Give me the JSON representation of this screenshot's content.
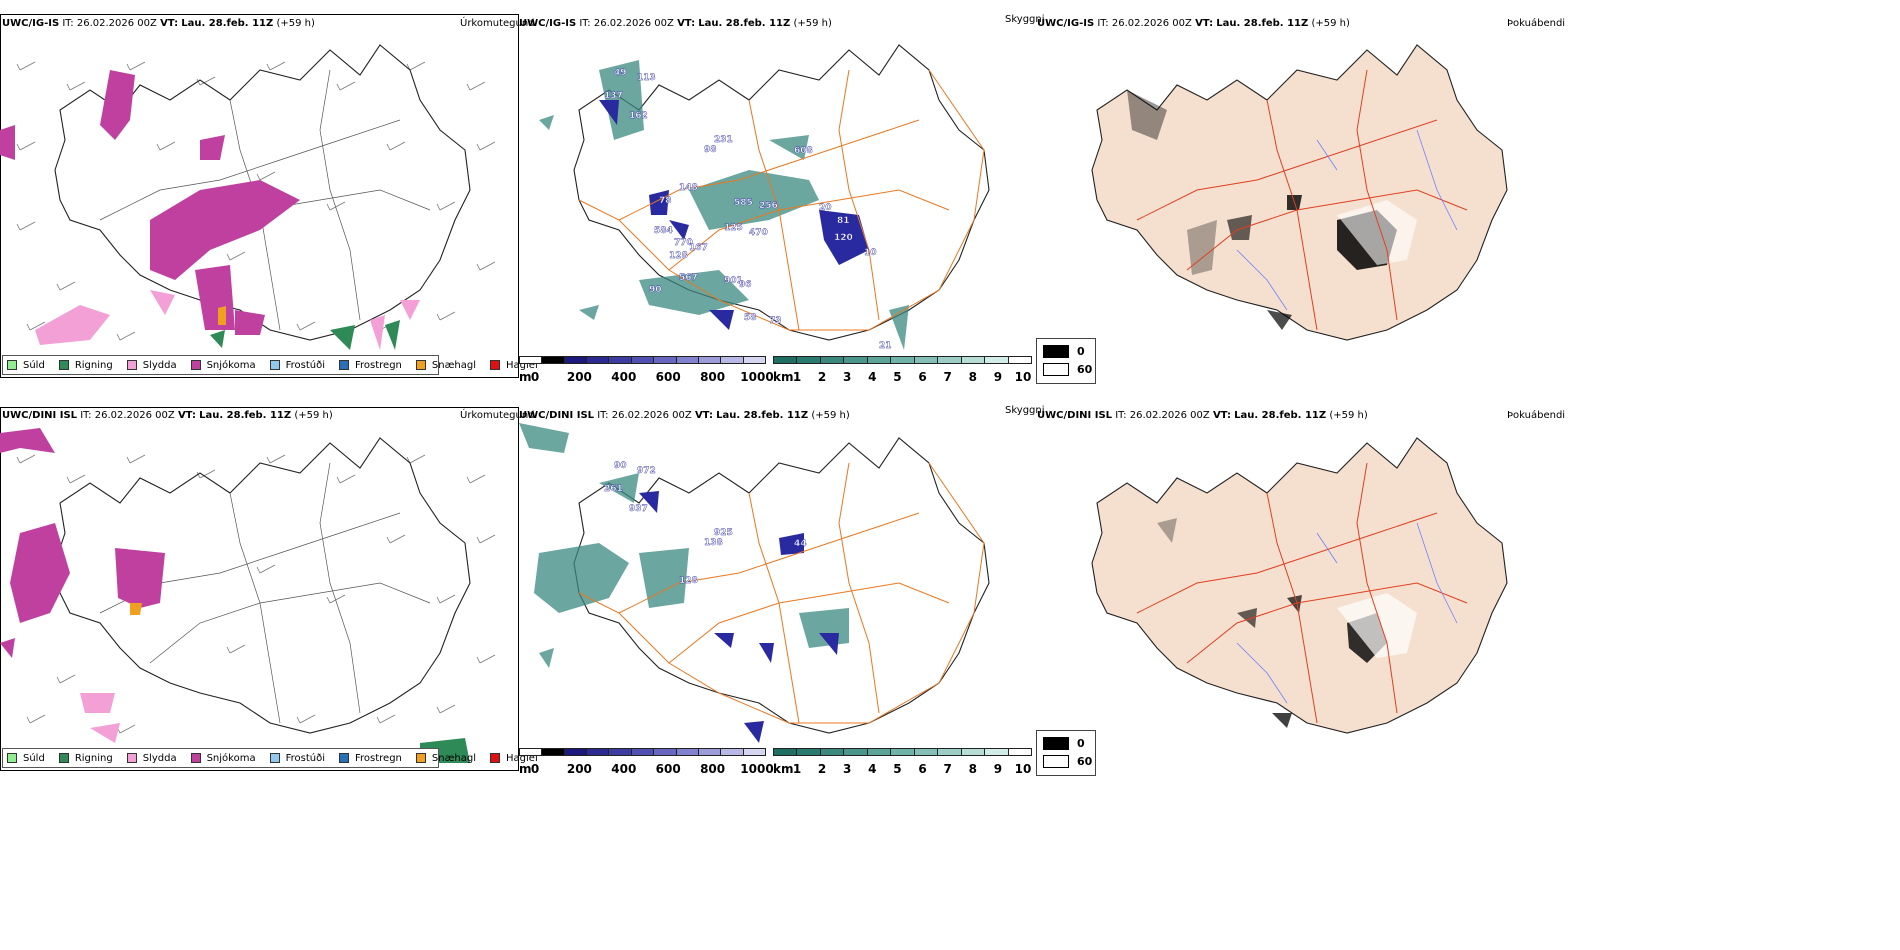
{
  "rows": [
    {
      "model": "UWC/IG-IS",
      "it_label": "IT:",
      "it_value": "26.02.2026 00Z",
      "vt_label": "VT:",
      "vt_value": "Lau. 28.feb. 11Z",
      "lead": "(+59 h)",
      "cloud_labels": [
        "49",
        "113",
        "137",
        "162",
        "231",
        "98",
        "608",
        "148",
        "78",
        "585",
        "256",
        "20",
        "81",
        "125",
        "470",
        "584",
        "770",
        "167",
        "128",
        "567",
        "90",
        "901",
        "96",
        "58",
        "73",
        "21",
        "10",
        "120"
      ]
    },
    {
      "model": "UWC/DINI ISL",
      "it_label": "IT:",
      "it_value": "26.02.2026 00Z",
      "vt_label": "VT:",
      "vt_value": "Lau. 28.feb. 11Z",
      "lead": "(+59 h)",
      "cloud_labels": [
        "90",
        "972",
        "261",
        "937",
        "925",
        "138",
        "44",
        "128"
      ]
    }
  ],
  "panel_titles": {
    "precip": "Úrkomutegund",
    "cloud": "Skyggni",
    "fog": "Þokuábendi"
  },
  "precip_legend": [
    {
      "label": "Súld",
      "color": "#90ee90"
    },
    {
      "label": "Rigning",
      "color": "#2e8b57"
    },
    {
      "label": "Slydda",
      "color": "#f2a0d6"
    },
    {
      "label": "Snjókoma",
      "color": "#c040a0"
    },
    {
      "label": "Frostúði",
      "color": "#90c8f0"
    },
    {
      "label": "Frostregn",
      "color": "#2a70b8"
    },
    {
      "label": "Snæhagl",
      "color": "#f0a020"
    },
    {
      "label": "Haglél",
      "color": "#e01010"
    }
  ],
  "cloud_bar": {
    "unit": "m",
    "ticks": [
      "0",
      "200",
      "400",
      "600",
      "800",
      "1000"
    ],
    "colors": [
      "#ffffff",
      "#000000",
      "#1a1a7a",
      "#2a2a90",
      "#3c3ca0",
      "#5050b0",
      "#6868c0",
      "#8282cc",
      "#9c9cd8",
      "#b8b8e4",
      "#d6d6f0"
    ]
  },
  "vis_bar": {
    "unit": "km",
    "ticks": [
      "1",
      "2",
      "3",
      "4",
      "5",
      "6",
      "7",
      "8",
      "9",
      "10"
    ],
    "colors": [
      "#1e6e64",
      "#2a7a70",
      "#3a887e",
      "#4a968c",
      "#5aa49a",
      "#6eb2a8",
      "#84c0b8",
      "#9ccec6",
      "#b6dcd6",
      "#d2ece8",
      "#ffffff"
    ]
  },
  "fog_legend": [
    {
      "value": "0",
      "color": "#000000"
    },
    {
      "value": "60",
      "color": "#ffffff"
    }
  ],
  "colors": {
    "map_line": "#222222",
    "road": "#e87820",
    "road_fog": "#e04020",
    "river": "#7080ff",
    "land_fog": "#f5e0d0",
    "snow": "#c040a0",
    "rain": "#2e8b57",
    "sleet": "#f2a0d6",
    "graupel": "#f0a020",
    "vis": "#3a8a80",
    "low_cloud": "#2a2aa0"
  }
}
